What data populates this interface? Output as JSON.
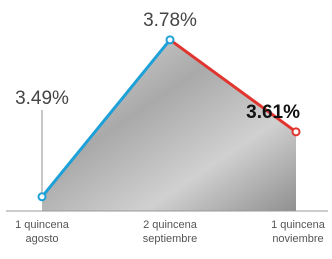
{
  "chart_data": {
    "type": "line",
    "categories": [
      [
        "1 quincena",
        "agosto"
      ],
      [
        "2 quincena",
        "septiembre"
      ],
      [
        "1 quincena",
        "noviembre"
      ]
    ],
    "values": [
      3.49,
      3.78,
      3.61
    ],
    "value_labels": [
      "3.49%",
      "3.78%",
      "3.61%"
    ],
    "colors": [
      "#1ea0d8",
      "#1ea0d8",
      "#e0352f"
    ],
    "emphasized": [
      false,
      false,
      true
    ],
    "ylim": [
      3.46,
      3.8
    ]
  }
}
